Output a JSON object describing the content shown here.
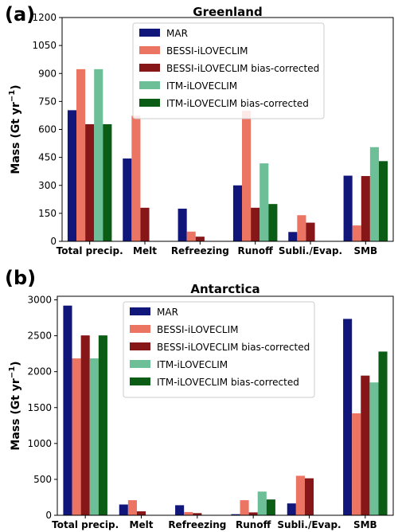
{
  "chart_data": [
    {
      "type": "bar",
      "panel": "(a)",
      "title": "Greenland",
      "ylabel": "Mass (Gt yr",
      "ylabel_sup": "−1",
      "ylabel_close": ")",
      "ylim": [
        0,
        1200
      ],
      "yticks": [
        0,
        150,
        300,
        450,
        600,
        750,
        900,
        1050,
        1200
      ],
      "categories": [
        "Total precip.",
        "Melt",
        "Refreezing",
        "Runoff",
        "Subli./Evap.",
        "SMB"
      ],
      "legend_position": "top-center",
      "series": [
        {
          "name": "MAR",
          "color": "#11167a",
          "values": [
            703,
            444,
            175,
            300,
            50,
            352
          ]
        },
        {
          "name": "BESSI-iLOVECLIM",
          "color": "#ec7463",
          "values": [
            923,
            673,
            52,
            700,
            140,
            85
          ]
        },
        {
          "name": "BESSI-iLOVECLIM bias-corrected",
          "color": "#861618",
          "values": [
            628,
            180,
            25,
            180,
            100,
            350
          ]
        },
        {
          "name": "ITM-iLOVECLIM",
          "color": "#6dbf98",
          "values": [
            923,
            0,
            0,
            418,
            0,
            505
          ]
        },
        {
          "name": "ITM-iLOVECLIM bias-corrected",
          "color": "#0b5d15",
          "values": [
            628,
            0,
            0,
            200,
            0,
            430
          ]
        }
      ]
    },
    {
      "type": "bar",
      "panel": "(b)",
      "title": "Antarctica",
      "ylabel": "Mass (Gt yr",
      "ylabel_sup": "−1",
      "ylabel_close": ")",
      "ylim": [
        0,
        3050
      ],
      "yticks": [
        0,
        500,
        1000,
        1500,
        2000,
        2500,
        3000
      ],
      "categories": [
        "Total precip.",
        "Melt",
        "Refreezing",
        "Runoff",
        "Subli./Evap.",
        "SMB"
      ],
      "legend_position": "top-center",
      "series": [
        {
          "name": "MAR",
          "color": "#11167a",
          "values": [
            2920,
            150,
            140,
            15,
            165,
            2735
          ]
        },
        {
          "name": "BESSI-iLOVECLIM",
          "color": "#ec7463",
          "values": [
            2185,
            210,
            45,
            210,
            550,
            1420
          ]
        },
        {
          "name": "BESSI-iLOVECLIM bias-corrected",
          "color": "#861618",
          "values": [
            2505,
            55,
            30,
            40,
            515,
            1945
          ]
        },
        {
          "name": "ITM-iLOVECLIM",
          "color": "#6dbf98",
          "values": [
            2185,
            0,
            0,
            330,
            0,
            1850
          ]
        },
        {
          "name": "ITM-iLOVECLIM bias-corrected",
          "color": "#0b5d15",
          "values": [
            2505,
            0,
            0,
            220,
            0,
            2280
          ]
        }
      ]
    }
  ]
}
